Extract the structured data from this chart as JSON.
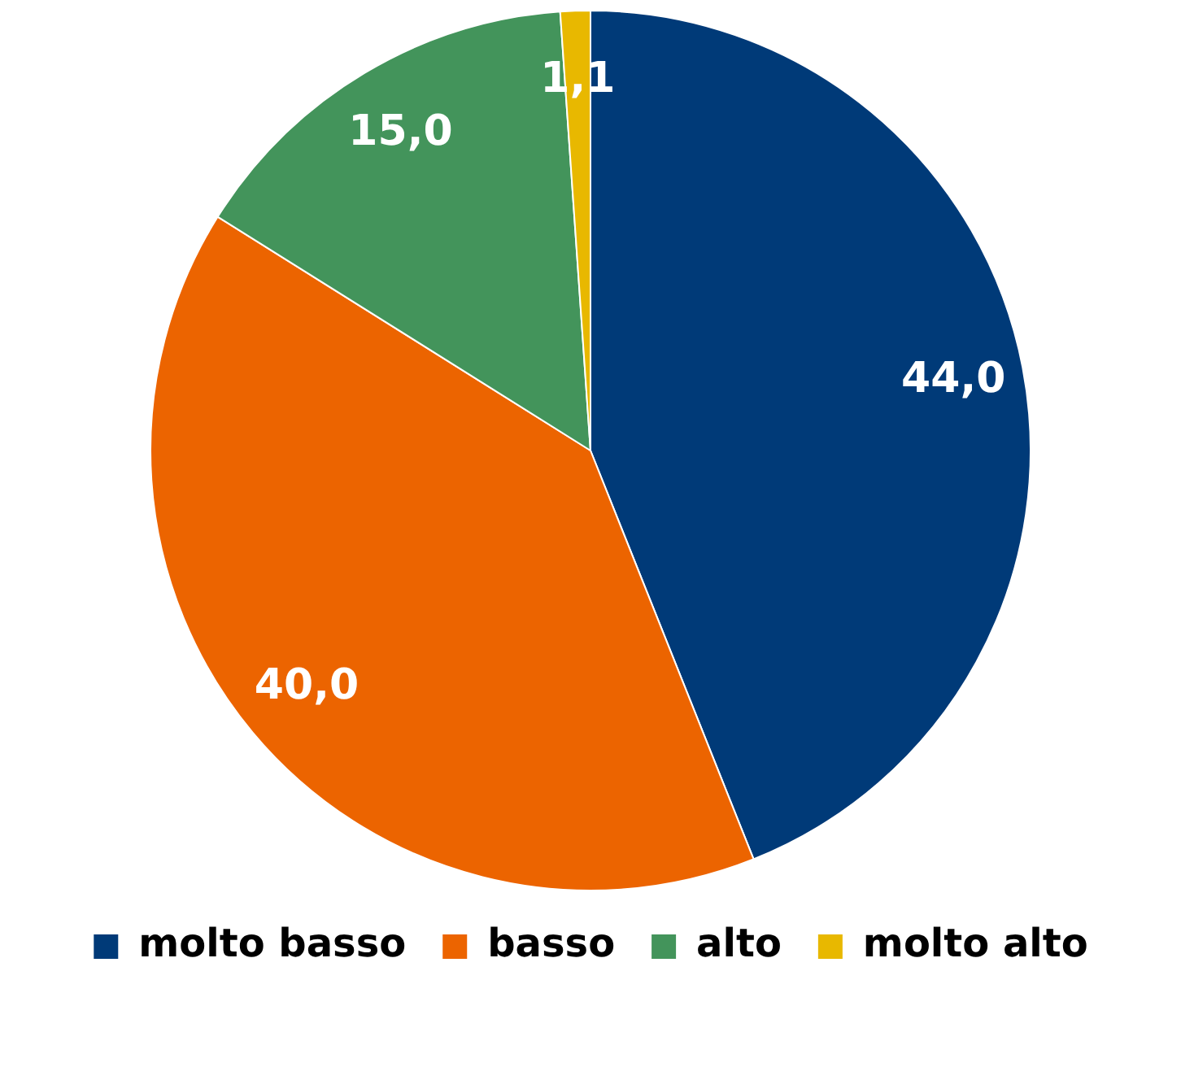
{
  "chart_data": {
    "type": "pie",
    "categories": [
      "molto basso",
      "basso",
      "alto",
      "molto alto"
    ],
    "values": [
      44.0,
      40.0,
      15.0,
      1.1
    ],
    "colors": [
      "#003a78",
      "#ec6400",
      "#43945b",
      "#e8b800"
    ],
    "value_labels": [
      "44,0",
      "40,0",
      "15,0",
      "1,1"
    ],
    "legend": "bottom"
  }
}
